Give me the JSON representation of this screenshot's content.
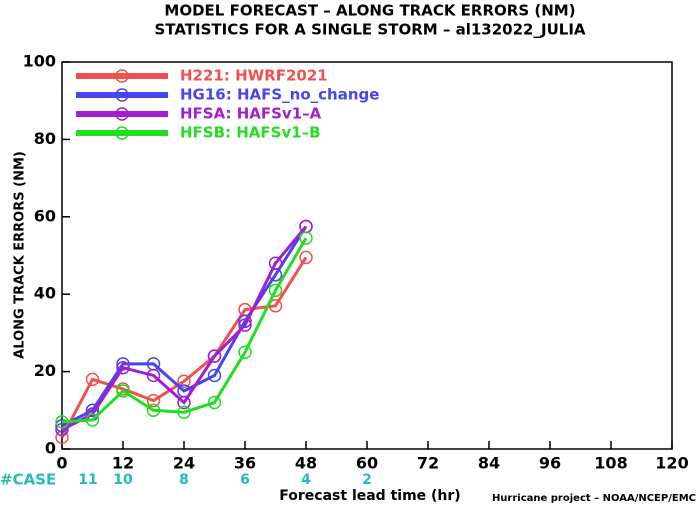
{
  "chart_data": {
    "type": "line",
    "title": [
      "MODEL FORECAST – ALONG TRACK ERRORS (NM)",
      "STATISTICS FOR A SINGLE STORM – al132022_JULIA"
    ],
    "ylabel": "ALONG TRACK ERRORS (NM)",
    "xlabel": "Forecast lead time (hr)",
    "footer": "Hurricane project – NOAA/NCEP/EMC",
    "x": [
      0,
      6,
      12,
      18,
      24,
      30,
      36,
      42,
      48
    ],
    "series": [
      {
        "name": "H221: HWRF2021",
        "color": "#f05050",
        "values": [
          3,
          18,
          15.5,
          12.5,
          17.5,
          24,
          36,
          37,
          49.5
        ]
      },
      {
        "name": "HG16: HAFS_no_change",
        "color": "#4646f0",
        "values": [
          6,
          10,
          22,
          22,
          15,
          19,
          33,
          45,
          57.5
        ]
      },
      {
        "name": "HFSA: HAFSv1–A",
        "color": "#a020d0",
        "values": [
          5,
          9,
          21,
          19,
          12,
          24,
          32,
          48,
          57.5
        ]
      },
      {
        "name": "HFSB: HAFSv1–B",
        "color": "#22dd22",
        "values": [
          7,
          7.5,
          15,
          10,
          9.5,
          12,
          25,
          41,
          54.5
        ]
      }
    ],
    "cases": {
      "label": "#CASE",
      "values": [
        11,
        10,
        8,
        6,
        4,
        2
      ]
    },
    "xlim": [
      0,
      120
    ],
    "xticks": [
      0,
      12,
      24,
      36,
      48,
      60,
      72,
      84,
      96,
      108,
      120
    ],
    "ylim": [
      0,
      100
    ],
    "yticks": [
      0,
      20,
      40,
      60,
      80,
      100
    ],
    "legend": "upper left"
  }
}
